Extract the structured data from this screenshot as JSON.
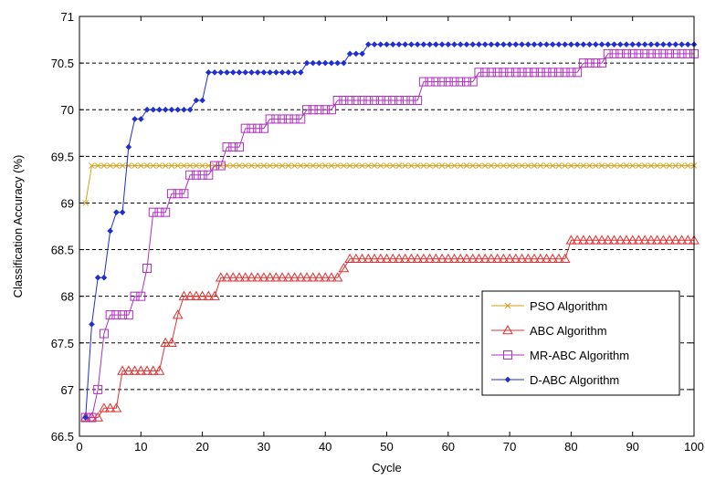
{
  "chart_data": {
    "type": "line",
    "xlabel": "Cycle",
    "ylabel": "Classification Accuracy (%)",
    "xlim": [
      0,
      100
    ],
    "ylim": [
      66.5,
      71
    ],
    "xticks": [
      0,
      10,
      20,
      30,
      40,
      50,
      60,
      70,
      80,
      90,
      100
    ],
    "yticks": [
      66.5,
      67,
      67.5,
      68,
      68.5,
      69,
      69.5,
      70,
      70.5,
      71
    ],
    "grid": "horizontal dashed",
    "legend_position": "bottom-right",
    "series": [
      {
        "name": "PSO Algorithm",
        "color": "#d4a017",
        "marker": "x",
        "steps": [
          [
            1,
            69.0
          ],
          [
            2,
            69.4
          ]
        ]
      },
      {
        "name": "ABC Algorithm",
        "color": "#e03030",
        "marker": "triangle",
        "steps": [
          [
            1,
            66.7
          ],
          [
            4,
            66.8
          ],
          [
            7,
            67.2
          ],
          [
            14,
            67.5
          ],
          [
            16,
            67.8
          ],
          [
            17,
            68.0
          ],
          [
            23,
            68.2
          ],
          [
            43,
            68.3
          ],
          [
            44,
            68.4
          ],
          [
            80,
            68.6
          ]
        ]
      },
      {
        "name": "MR-ABC Algorithm",
        "color": "#b030c0",
        "marker": "square",
        "steps": [
          [
            1,
            66.7
          ],
          [
            3,
            67.0
          ],
          [
            4,
            67.6
          ],
          [
            5,
            67.8
          ],
          [
            9,
            68.0
          ],
          [
            11,
            68.3
          ],
          [
            12,
            68.9
          ],
          [
            15,
            69.1
          ],
          [
            18,
            69.3
          ],
          [
            22,
            69.4
          ],
          [
            24,
            69.6
          ],
          [
            27,
            69.8
          ],
          [
            31,
            69.9
          ],
          [
            37,
            70.0
          ],
          [
            42,
            70.1
          ],
          [
            56,
            70.3
          ],
          [
            65,
            70.4
          ],
          [
            82,
            70.5
          ],
          [
            86,
            70.6
          ]
        ]
      },
      {
        "name": "D-ABC Algorithm",
        "color": "#1f2fd0",
        "marker": "diamond",
        "steps": [
          [
            1,
            66.7
          ],
          [
            2,
            67.7
          ],
          [
            3,
            68.2
          ],
          [
            5,
            68.7
          ],
          [
            6,
            68.9
          ],
          [
            8,
            69.6
          ],
          [
            9,
            69.9
          ],
          [
            11,
            70.0
          ],
          [
            19,
            70.1
          ],
          [
            21,
            70.4
          ],
          [
            37,
            70.5
          ],
          [
            44,
            70.6
          ],
          [
            47,
            70.7
          ]
        ]
      }
    ]
  }
}
